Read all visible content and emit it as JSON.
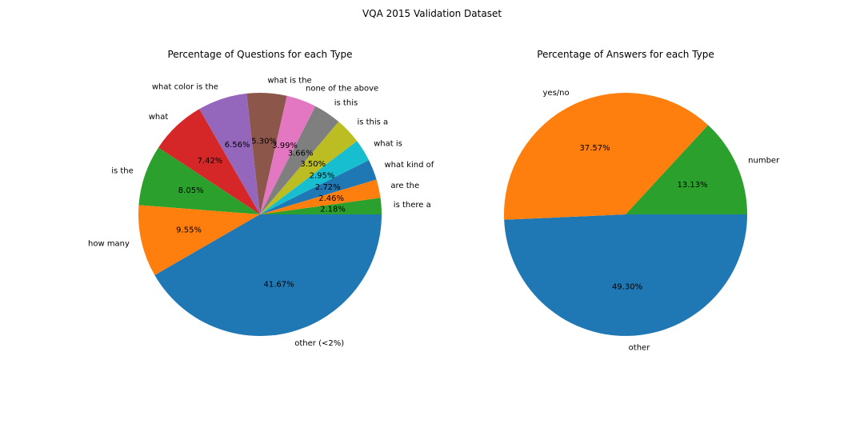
{
  "figure": {
    "suptitle": "VQA 2015 Validation Dataset"
  },
  "chart_data": [
    {
      "type": "pie",
      "title": "Percentage of Questions for each Type",
      "start_angle_deg": 0,
      "direction": "counterclockwise",
      "labels": [
        "is there a",
        "are the",
        "what kind of",
        "what is",
        "is this a",
        "is this",
        "none of the above",
        "what is the",
        "what color is the",
        "what",
        "is the",
        "how many",
        "other (<2%)"
      ],
      "values": [
        2.18,
        2.46,
        2.72,
        2.95,
        3.5,
        3.66,
        3.99,
        5.3,
        6.56,
        7.42,
        8.05,
        9.55,
        41.67
      ],
      "pct_labels": [
        "2.18%",
        "2.46%",
        "2.72%",
        "2.95%",
        "3.50%",
        "3.66%",
        "3.99%",
        "5.30%",
        "6.56%",
        "7.42%",
        "8.05%",
        "9.55%",
        "41.67%"
      ],
      "colors": [
        "#2ca02c",
        "#ff7f0e",
        "#1f77b4",
        "#17becf",
        "#bcbd22",
        "#7f7f7f",
        "#e377c2",
        "#8c564b",
        "#9467bd",
        "#d62728",
        "#2ca02c",
        "#ff7f0e",
        "#1f77b4"
      ]
    },
    {
      "type": "pie",
      "title": "Percentage of Answers for each Type",
      "start_angle_deg": 0,
      "direction": "clockwise",
      "labels": [
        "other",
        "yes/no",
        "number"
      ],
      "values": [
        49.3,
        37.57,
        13.13
      ],
      "pct_labels": [
        "49.30%",
        "37.57%",
        "13.13%"
      ],
      "colors": [
        "#1f77b4",
        "#ff7f0e",
        "#2ca02c"
      ]
    }
  ]
}
